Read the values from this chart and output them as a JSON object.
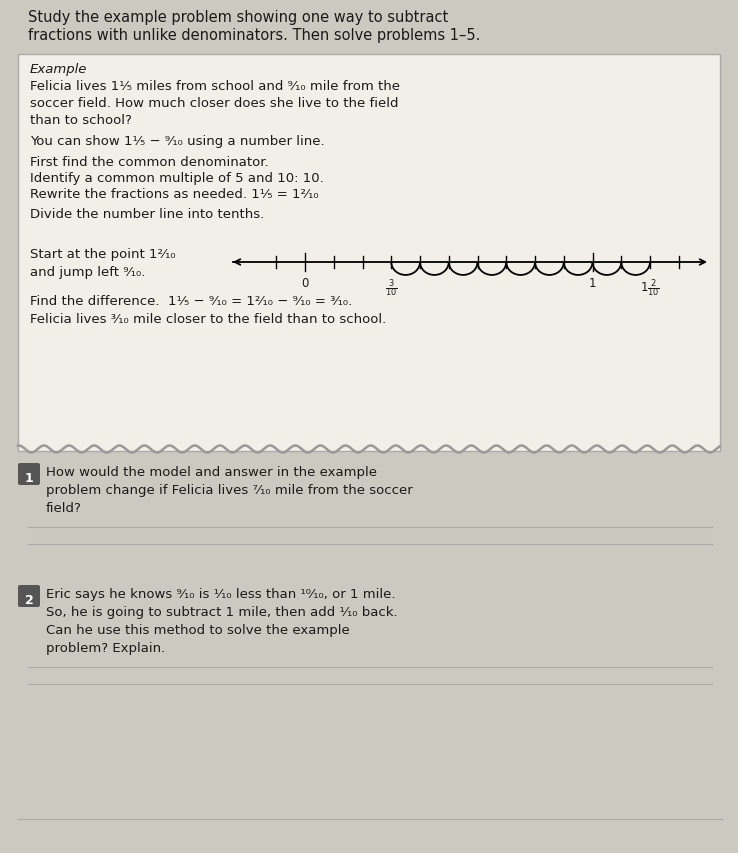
{
  "bg_color": "#ccc9c0",
  "box_bg": "#f2efe8",
  "box_border": "#aaaaaa",
  "text_color": "#1a1a1a",
  "line_color": "#aaaaaa",
  "header_text1": "Study the example problem showing one way to subtract",
  "header_text2": "fractions with unlike denominators. Then solve problems 1–5.",
  "example_label": "Example",
  "ex_line1": "Felicia lives 1¹⁄₅ miles from school and ⁹⁄₁₀ mile from the",
  "ex_line2": "soccer field. How much closer does she live to the field",
  "ex_line3": "than to school?",
  "step1": "You can show 1¹⁄₅ − ⁹⁄₁₀ using a number line.",
  "step2": "First find the common denominator.",
  "step3": "Identify a common multiple of 5 and 10: 10.",
  "step4": "Rewrite the fractions as needed. 1¹⁄₅ = 1²⁄₁₀",
  "step5": "Divide the number line into tenths.",
  "step6a": "Start at the point 1²⁄₁₀",
  "step6b": "and jump left ⁹⁄₁₀.",
  "step7_pre": "Find the difference.",
  "step7_eq": "  1¹⁄₅ − ⁹⁄₁₀ = 1²⁄₁₀ − ⁹⁄₁₀ = ³⁄₁₀.",
  "conclusion": "Felicia lives ³⁄₁₀ mile closer to the field than to school.",
  "q1_text1": "How would the model and answer in the example",
  "q1_text2": "problem change if Felicia lives ⁷⁄₁₀ mile from the soccer",
  "q1_text3": "field?",
  "q2_text1": "Eric says he knows ⁹⁄₁₀ is ¹⁄₁₀ less than ¹⁰⁄₁₀, or 1 mile.",
  "q2_text2": "So, he is going to subtract 1 mile, then add ¹⁄₁₀ back.",
  "q2_text3": "Can he use this method to solve the example",
  "q2_text4": "problem? Explain.",
  "nl_label0": "0",
  "nl_label3": "$\\frac{3}{10}$",
  "nl_label1": "1",
  "nl_label12": "$1\\frac{2}{10}$"
}
